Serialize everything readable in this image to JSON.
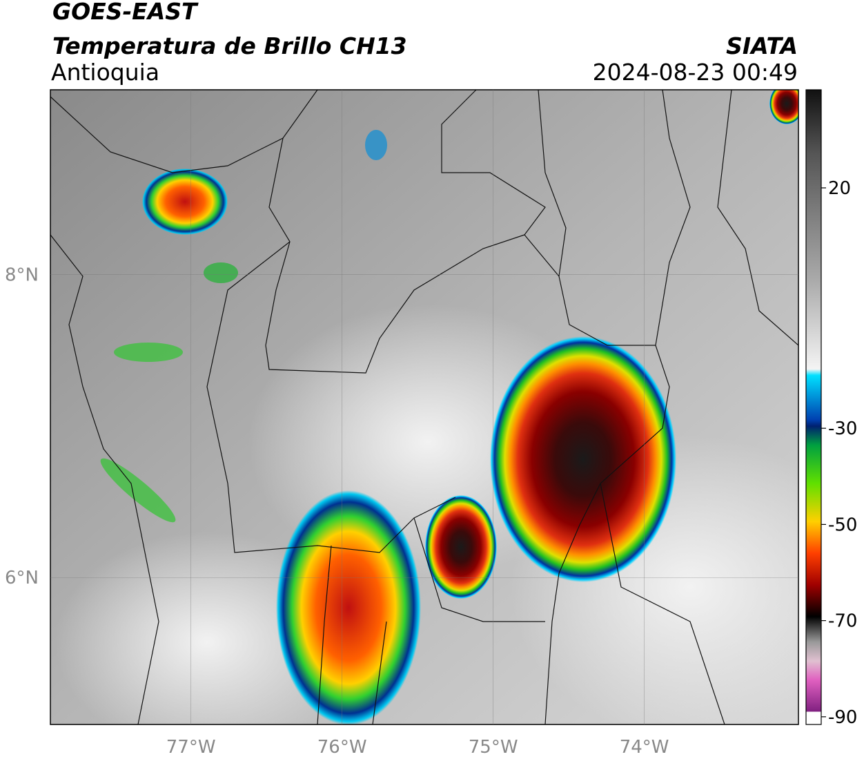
{
  "header": {
    "title": "GOES-EAST",
    "subtitle": "Temperatura de Brillo CH13",
    "region": "Antioquia",
    "source": "SIATA",
    "timestamp": "2024-08-23 00:49"
  },
  "map": {
    "lonlim": [
      -77.93,
      -72.98
    ],
    "latlim": [
      5.03,
      9.22
    ],
    "lon_ticks": [
      {
        "value": -77,
        "label": "77°W"
      },
      {
        "value": -76,
        "label": "76°W"
      },
      {
        "value": -75,
        "label": "75°W"
      },
      {
        "value": -74,
        "label": "74°W"
      }
    ],
    "lat_ticks": [
      {
        "value": 8,
        "label": "8°N"
      },
      {
        "value": 6,
        "label": "6°N"
      }
    ]
  },
  "colorbar": {
    "lim": [
      -91.6,
      40.4
    ],
    "ticks": [
      20,
      -30,
      -50,
      -70,
      -90
    ]
  }
}
